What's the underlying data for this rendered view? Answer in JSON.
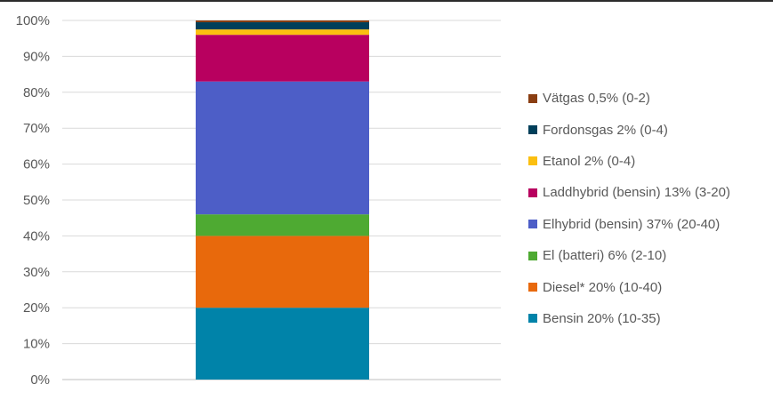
{
  "chart_data": {
    "type": "bar",
    "stacked": true,
    "categories": [
      ""
    ],
    "ylim": [
      0,
      100
    ],
    "y_ticks": [
      "0%",
      "10%",
      "20%",
      "30%",
      "40%",
      "50%",
      "60%",
      "70%",
      "80%",
      "90%",
      "100%"
    ],
    "grid": true,
    "legend_position": "right",
    "series": [
      {
        "name": "Bensin 20% (10-35)",
        "values": [
          20
        ],
        "color": "#0083A9"
      },
      {
        "name": "Diesel* 20% (10-40)",
        "values": [
          20
        ],
        "color": "#E8690C"
      },
      {
        "name": "El (batteri) 6% (2-10)",
        "values": [
          6
        ],
        "color": "#4EAA32"
      },
      {
        "name": "Elhybrid (bensin) 37% (20-40)",
        "values": [
          37
        ],
        "color": "#4D5EC7"
      },
      {
        "name": "Laddhybrid (bensin) 13% (3-20)",
        "values": [
          13
        ],
        "color": "#B8005F"
      },
      {
        "name": "Etanol 2% (0-4)",
        "values": [
          1.5
        ],
        "color": "#FBBF10"
      },
      {
        "name": "Fordonsgas 2% (0-4)",
        "values": [
          2
        ],
        "color": "#003F5A"
      },
      {
        "name": "Vätgas 0,5% (0-2)",
        "values": [
          0.5
        ],
        "color": "#8A3E12"
      }
    ],
    "legend_order": [
      "Vätgas 0,5% (0-2)",
      "Fordonsgas 2% (0-4)",
      "Etanol 2% (0-4)",
      "Laddhybrid (bensin) 13% (3-20)",
      "Elhybrid (bensin) 37% (20-40)",
      "El (batteri) 6% (2-10)",
      "Diesel* 20% (10-40)",
      "Bensin 20% (10-35)"
    ]
  }
}
